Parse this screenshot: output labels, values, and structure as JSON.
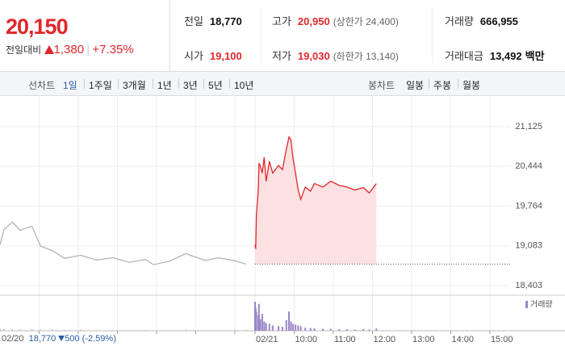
{
  "header": {
    "price": "20,150",
    "change_label": "전일대비",
    "change": "1,380",
    "change_pct": "+7.35%",
    "stats": [
      {
        "label": "전일",
        "value": "18,770"
      },
      {
        "label": "고가",
        "value": "20,950",
        "note": "(상한가 24,400)",
        "color": "#e0272b"
      },
      {
        "label": "거래량",
        "value": "666,955"
      },
      {
        "label": "시가",
        "value": "19,100",
        "color": "#e0272b"
      },
      {
        "label": "저가",
        "value": "19,030",
        "note": "(하한가 13,140)",
        "color": "#e0272b"
      },
      {
        "label": "거래대금",
        "value": "13,492",
        "note": "백만"
      }
    ]
  },
  "tabs": {
    "line_label": "선차트",
    "periods": [
      "1일",
      "1주일",
      "3개월",
      "1년",
      "3년",
      "5년",
      "10년"
    ],
    "active": 0,
    "candle_label": "봉차트",
    "candles": [
      "일봉",
      "주봉",
      "월봉"
    ]
  },
  "chart_data": {
    "type": "line",
    "xlim": [
      -391,
      391
    ],
    "ylim": [
      18250,
      21665
    ],
    "yticks": [
      {
        "value": 21125,
        "label": "21,125"
      },
      {
        "value": 20444,
        "label": "20,444"
      },
      {
        "value": 19764,
        "label": "19,764"
      },
      {
        "value": 19083,
        "label": "19,083"
      },
      {
        "value": 18403,
        "label": "18,403"
      }
    ],
    "xticks": [
      {
        "value": 0,
        "label": "02/21"
      },
      {
        "value": 60,
        "label": "10:00"
      },
      {
        "value": 120,
        "label": "11:00"
      },
      {
        "value": 180,
        "label": "12:00"
      },
      {
        "value": 240,
        "label": "13:00"
      },
      {
        "value": 300,
        "label": "14:00"
      },
      {
        "value": 360,
        "label": "15:00"
      }
    ],
    "grid": true,
    "base": 18770,
    "series": [
      {
        "color": "#b4b4b4",
        "x": [
          -391,
          -385,
          -372,
          -360,
          -342,
          -329,
          -311,
          -292,
          -267,
          -243,
          -218,
          -193,
          -168,
          -156,
          -131,
          -106,
          -94,
          -75,
          -57,
          -32,
          -14
        ],
        "values": [
          19100,
          19360,
          19490,
          19350,
          19420,
          19080,
          19000,
          18870,
          18920,
          18840,
          18880,
          18800,
          18850,
          18760,
          18820,
          18950,
          18900,
          18830,
          18880,
          18830,
          18770
        ],
        "volume": [
          3000,
          2500,
          2000,
          1800,
          2200,
          1500,
          1800,
          1200,
          1500,
          1000,
          1200,
          900,
          1100,
          800,
          1000,
          1600,
          1200,
          900,
          1000,
          900,
          1500
        ]
      },
      {
        "color": "#e0272b",
        "fill": "#fbe1e2",
        "x": [
          0,
          1,
          2,
          5,
          6,
          8,
          11,
          14,
          17,
          22,
          27,
          36,
          42,
          48,
          52,
          55,
          58,
          62,
          66,
          70,
          77,
          85,
          91,
          104,
          116,
          129,
          141,
          153,
          166,
          175,
          186
        ],
        "values": [
          19100,
          19030,
          19600,
          20050,
          20500,
          20450,
          20330,
          20600,
          20190,
          20530,
          20330,
          20460,
          20390,
          20740,
          20950,
          20900,
          20600,
          20330,
          20050,
          19880,
          20090,
          20020,
          20150,
          20090,
          20190,
          20120,
          20090,
          20040,
          20080,
          19990,
          20150
        ],
        "volume": [
          38000,
          30000,
          25000,
          20000,
          35000,
          15000,
          22000,
          12000,
          10000,
          9000,
          7000,
          6000,
          5000,
          14000,
          25000,
          12000,
          9000,
          8000,
          7000,
          6000,
          4000,
          3500,
          3000,
          2500,
          2500,
          2000,
          2000,
          1500,
          2000,
          1500,
          3000
        ]
      }
    ],
    "volume_name": "거래량",
    "volume_color": "#9a86c8",
    "volume_ylim": [
      0,
      40000
    ],
    "prev_annotation": {
      "date": "02/20",
      "close": "18,770",
      "change": "500",
      "pct": "(-2.59%)"
    }
  }
}
